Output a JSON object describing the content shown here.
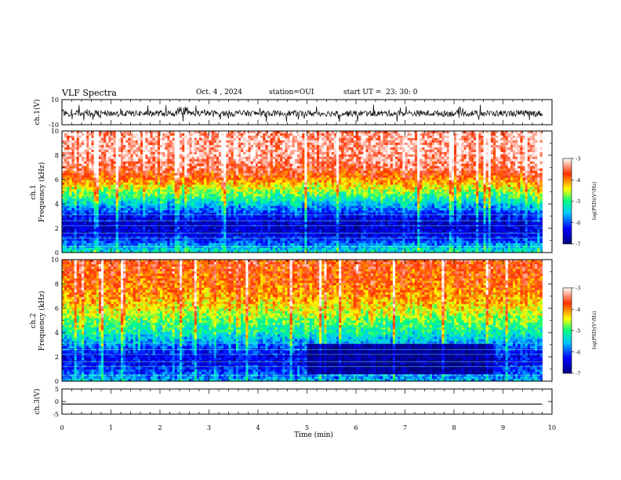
{
  "header": {
    "title": "VLF Spectra",
    "date": "Oct. 4 , 2024",
    "station": "station=OUI",
    "start": "start UT =  23: 30: 0"
  },
  "colorbar": {
    "label": "log(PSD)(V²/Hz)",
    "ticks": [
      "-3",
      "-4",
      "-5",
      "-6",
      "-7"
    ]
  },
  "chart_data": [
    {
      "type": "line",
      "name": "waveform-ch1",
      "ylabel": "ch.1(V)",
      "ylim": [
        -10,
        10
      ],
      "yticks": [
        "10",
        "-10"
      ],
      "xlim": [
        0,
        10
      ],
      "x_extent": [
        0,
        9.8
      ],
      "baseline": -1,
      "amplitude_typical": 2.5,
      "amplitude_spike": 7
    },
    {
      "type": "heatmap",
      "name": "spectrogram-ch1",
      "ylabel": "ch.1 Frequency (kHz)",
      "ylim": [
        0,
        10
      ],
      "yticks": [
        "0",
        "2",
        "4",
        "6",
        "8",
        "10"
      ],
      "xlim": [
        0,
        10
      ],
      "x_extent": [
        0,
        9.8
      ],
      "zlim": [
        -7,
        -3
      ],
      "profile_khz": [
        0,
        0.5,
        1,
        1.5,
        2,
        2.5,
        3,
        3.5,
        4,
        4.5,
        5,
        6,
        7,
        8,
        10
      ],
      "profile_logpsd": [
        -5.2,
        -5.6,
        -6.1,
        -6.4,
        -6.5,
        -6.5,
        -6.2,
        -5.8,
        -5.4,
        -5.0,
        -4.6,
        -3.9,
        -3.4,
        -3.2,
        -3.2
      ]
    },
    {
      "type": "heatmap",
      "name": "spectrogram-ch2",
      "ylabel": "ch.2 Frequency (kHz)",
      "ylim": [
        0,
        10
      ],
      "yticks": [
        "0",
        "2",
        "4",
        "6",
        "8",
        "10"
      ],
      "xlim": [
        0,
        10
      ],
      "x_extent": [
        0,
        9.8
      ],
      "zlim": [
        -7,
        -3
      ],
      "profile_khz": [
        0,
        0.5,
        1,
        1.5,
        2,
        2.5,
        3,
        3.5,
        4,
        5,
        6,
        7,
        8,
        10
      ],
      "profile_logpsd": [
        -5.5,
        -5.8,
        -6.1,
        -6.3,
        -6.3,
        -6.1,
        -5.7,
        -5.4,
        -5.1,
        -4.7,
        -4.3,
        -4.0,
        -3.8,
        -3.6
      ],
      "quiet_band": {
        "t_min": [
          5,
          8.8
        ],
        "khz": [
          0.5,
          3
        ],
        "logpsd": -6.8
      }
    },
    {
      "type": "line",
      "name": "waveform-ch3",
      "ylabel": "ch.3(V)",
      "ylim": [
        -5,
        5
      ],
      "yticks": [
        "5",
        "0",
        "-5"
      ],
      "xlim": [
        0,
        10
      ],
      "x_extent": [
        0,
        9.8
      ],
      "y_values": [
        -1,
        -1
      ]
    }
  ],
  "xaxis": {
    "label": "Time (min)",
    "ticks": [
      "0",
      "1",
      "2",
      "3",
      "4",
      "5",
      "6",
      "7",
      "8",
      "9",
      "10"
    ]
  }
}
